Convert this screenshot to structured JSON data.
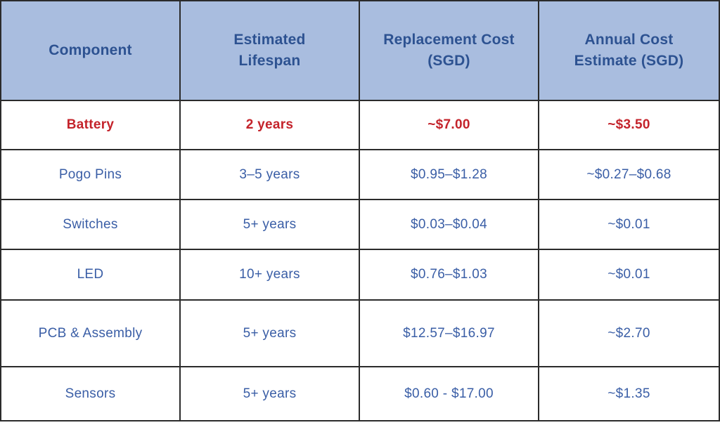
{
  "colors": {
    "header_background": "#a9bddf",
    "header_text": "#2d5291",
    "body_text": "#3a5ea6",
    "highlight_red": "#c4232b",
    "border": "#2b2b2b"
  },
  "table": {
    "columns": [
      {
        "label": "Component"
      },
      {
        "label": "Estimated\nLifespan"
      },
      {
        "label": "Replacement Cost\n(SGD)"
      },
      {
        "label": "Annual Cost\nEstimate (SGD)"
      }
    ],
    "rows": [
      {
        "highlight": true,
        "cells": [
          "Battery",
          "2 years",
          "~$7.00",
          "~$3.50"
        ]
      },
      {
        "highlight": false,
        "cells": [
          "Pogo Pins",
          "3–5 years",
          "$0.95–$1.28",
          "~$0.27–$0.68"
        ]
      },
      {
        "highlight": false,
        "cells": [
          "Switches",
          "5+ years",
          "$0.03–$0.04",
          "~$0.01"
        ]
      },
      {
        "highlight": false,
        "cells": [
          "LED",
          "10+ years",
          "$0.76–$1.03",
          "~$0.01"
        ]
      },
      {
        "highlight": false,
        "cells": [
          "PCB & Assembly",
          "5+ years",
          "$12.57–$16.97",
          "~$2.70"
        ]
      },
      {
        "highlight": false,
        "cells": [
          "Sensors",
          "5+ years",
          "$0.60 - $17.00",
          "~$1.35"
        ]
      }
    ]
  }
}
